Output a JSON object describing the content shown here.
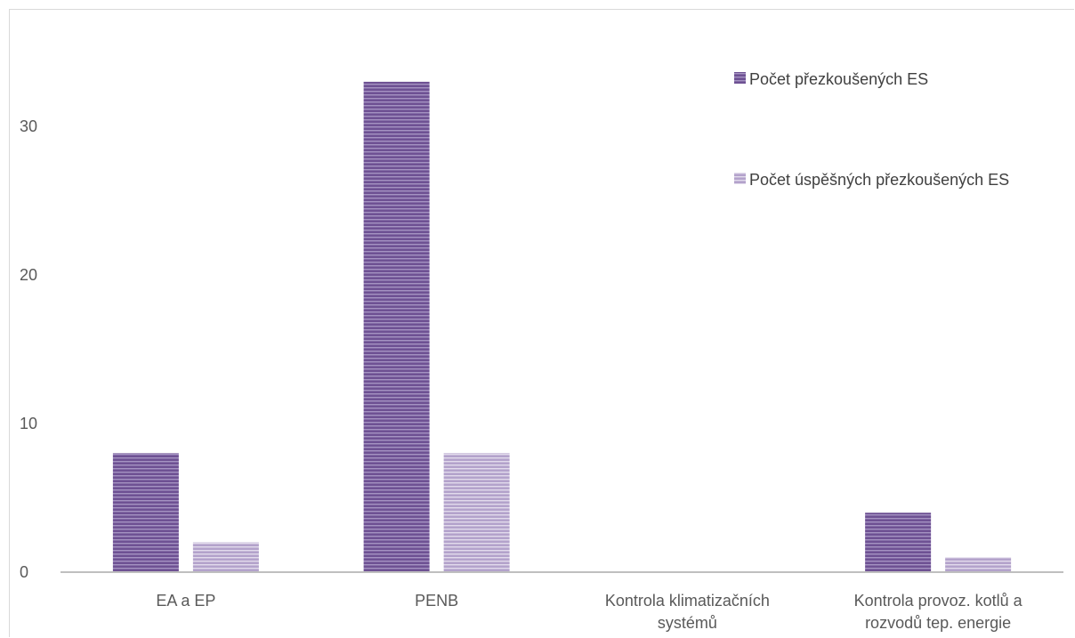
{
  "chart_data": {
    "type": "bar",
    "categories": [
      [
        "EA a EP"
      ],
      [
        "PENB"
      ],
      [
        "Kontrola klimatizačních",
        "systémů"
      ],
      [
        "Kontrola provoz. kotlů a",
        "rozvodů tep. energie"
      ]
    ],
    "series": [
      {
        "name": "Počet přezkoušených ES",
        "values": [
          8,
          33,
          0,
          4
        ],
        "color": "#7b5ea0"
      },
      {
        "name": "Počet úspěšných přezkoušených ES",
        "values": [
          2,
          8,
          0,
          1
        ],
        "color": "#b8a7cf"
      }
    ],
    "yticks": [
      "0",
      "10",
      "20",
      "30"
    ],
    "ylim": [
      0,
      36
    ],
    "grid": false,
    "legend_position": "top-right",
    "axis_color": "#bfbfbf"
  }
}
